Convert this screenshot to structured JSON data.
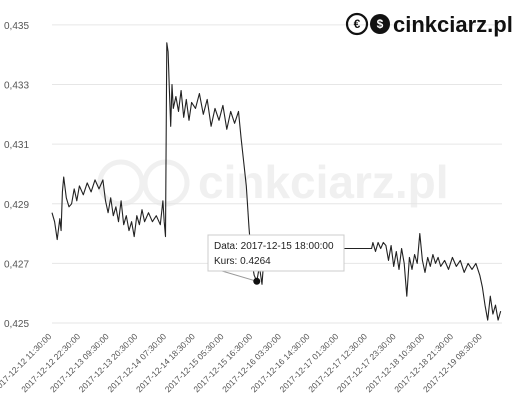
{
  "brand": {
    "name": "cinkciarz",
    "tld": ".pl",
    "icon_glyphs": [
      "€",
      "$"
    ],
    "color": "#111111",
    "watermark_color": "#f0f0f0"
  },
  "chart_data": {
    "type": "line",
    "title": "",
    "xlabel": "",
    "ylabel": "",
    "ylim": [
      0.4248,
      0.4355
    ],
    "yticks": [
      "0,425",
      "0,427",
      "0,429",
      "0,431",
      "0,433",
      "0,435"
    ],
    "ytick_values": [
      0.425,
      0.427,
      0.429,
      0.431,
      0.433,
      0.435
    ],
    "xticks": [
      "2017-12-12 11:30:00",
      "2017-12-12 22:30:00",
      "2017-12-13 09:30:00",
      "2017-12-13 20:30:00",
      "2017-12-14 07:30:00",
      "2017-12-14 18:30:00",
      "2017-12-15 05:30:00",
      "2017-12-15 16:30:00",
      "2017-12-16 03:30:00",
      "2017-12-16 14:30:00",
      "2017-12-17 01:30:00",
      "2017-12-17 12:30:00",
      "2017-12-17 23:30:00",
      "2017-12-18 10:30:00",
      "2017-12-18 21:30:00",
      "2017-12-19 08:30:00"
    ],
    "xtick_display": [
      "2017-12-12 11:30:00",
      "2017-12-12 22:30:00",
      "2017-12-13 09:30:00",
      "2017-12-13 20:30:00",
      "2017-12-14 07:30:00",
      "2017-12-14 18:30:00",
      "2017-12-15 05:30:00",
      "2017-12-15 16:30:00",
      "2017-12-16 03:30:00",
      "2017-12-16 14:30:00",
      "2017-12-17 01:30:00",
      "2017-12-17 12:30:00",
      "2017-12-17 23:30:00",
      "2017-12-18 10:30:00",
      "2017-12-18 21:30:00",
      "2017-12-19 08:30:00"
    ],
    "xlim": [
      "2017-12-12 11:30:00",
      "2017-12-19 16:00:00"
    ],
    "grid": true,
    "legend": "none",
    "series": [
      {
        "color": "#222222",
        "points": [
          [
            "2017-12-12 11:30:00",
            0.4287
          ],
          [
            "2017-12-12 12:30:00",
            0.4284
          ],
          [
            "2017-12-12 13:30:00",
            0.4278
          ],
          [
            "2017-12-12 14:30:00",
            0.4285
          ],
          [
            "2017-12-12 15:00:00",
            0.4281
          ],
          [
            "2017-12-12 15:30:00",
            0.4294
          ],
          [
            "2017-12-12 16:00:00",
            0.4299
          ],
          [
            "2017-12-12 17:00:00",
            0.4292
          ],
          [
            "2017-12-12 18:00:00",
            0.4289
          ],
          [
            "2017-12-12 19:00:00",
            0.429
          ],
          [
            "2017-12-12 20:00:00",
            0.4295
          ],
          [
            "2017-12-12 21:00:00",
            0.4291
          ],
          [
            "2017-12-12 22:00:00",
            0.4296
          ],
          [
            "2017-12-12 23:30:00",
            0.4293
          ],
          [
            "2017-12-13 01:00:00",
            0.4297
          ],
          [
            "2017-12-13 02:30:00",
            0.4294
          ],
          [
            "2017-12-13 04:00:00",
            0.4298
          ],
          [
            "2017-12-13 05:30:00",
            0.4295
          ],
          [
            "2017-12-13 07:00:00",
            0.4298
          ],
          [
            "2017-12-13 08:00:00",
            0.4291
          ],
          [
            "2017-12-13 09:00:00",
            0.4287
          ],
          [
            "2017-12-13 10:00:00",
            0.4292
          ],
          [
            "2017-12-13 11:00:00",
            0.4286
          ],
          [
            "2017-12-13 12:00:00",
            0.4289
          ],
          [
            "2017-12-13 13:00:00",
            0.4284
          ],
          [
            "2017-12-13 14:00:00",
            0.4291
          ],
          [
            "2017-12-13 15:00:00",
            0.4283
          ],
          [
            "2017-12-13 16:00:00",
            0.4286
          ],
          [
            "2017-12-13 17:00:00",
            0.4281
          ],
          [
            "2017-12-13 18:00:00",
            0.4284
          ],
          [
            "2017-12-13 19:00:00",
            0.4279
          ],
          [
            "2017-12-13 20:00:00",
            0.4286
          ],
          [
            "2017-12-13 21:00:00",
            0.4283
          ],
          [
            "2017-12-13 22:00:00",
            0.4288
          ],
          [
            "2017-12-13 23:00:00",
            0.4284
          ],
          [
            "2017-12-14 00:30:00",
            0.4287
          ],
          [
            "2017-12-14 02:00:00",
            0.4284
          ],
          [
            "2017-12-14 03:30:00",
            0.4286
          ],
          [
            "2017-12-14 05:00:00",
            0.4283
          ],
          [
            "2017-12-14 06:00:00",
            0.4291
          ],
          [
            "2017-12-14 06:30:00",
            0.4284
          ],
          [
            "2017-12-14 07:00:00",
            0.4279
          ],
          [
            "2017-12-14 07:30:00",
            0.4344
          ],
          [
            "2017-12-14 08:00:00",
            0.4341
          ],
          [
            "2017-12-14 08:30:00",
            0.4328
          ],
          [
            "2017-12-14 09:00:00",
            0.4316
          ],
          [
            "2017-12-14 09:30:00",
            0.433
          ],
          [
            "2017-12-14 10:00:00",
            0.4322
          ],
          [
            "2017-12-14 11:00:00",
            0.4326
          ],
          [
            "2017-12-14 12:00:00",
            0.4321
          ],
          [
            "2017-12-14 13:00:00",
            0.4328
          ],
          [
            "2017-12-14 14:00:00",
            0.4319
          ],
          [
            "2017-12-14 15:00:00",
            0.4325
          ],
          [
            "2017-12-14 16:00:00",
            0.4318
          ],
          [
            "2017-12-14 17:00:00",
            0.4324
          ],
          [
            "2017-12-14 18:30:00",
            0.4322
          ],
          [
            "2017-12-14 20:00:00",
            0.4327
          ],
          [
            "2017-12-14 21:30:00",
            0.432
          ],
          [
            "2017-12-14 23:00:00",
            0.4325
          ],
          [
            "2017-12-15 00:30:00",
            0.4316
          ],
          [
            "2017-12-15 02:00:00",
            0.4322
          ],
          [
            "2017-12-15 03:30:00",
            0.4318
          ],
          [
            "2017-12-15 05:00:00",
            0.4323
          ],
          [
            "2017-12-15 06:30:00",
            0.4315
          ],
          [
            "2017-12-15 08:00:00",
            0.4321
          ],
          [
            "2017-12-15 09:30:00",
            0.4317
          ],
          [
            "2017-12-15 11:00:00",
            0.4321
          ],
          [
            "2017-12-15 12:00:00",
            0.4312
          ],
          [
            "2017-12-15 13:00:00",
            0.4304
          ],
          [
            "2017-12-15 14:00:00",
            0.4296
          ],
          [
            "2017-12-15 15:00:00",
            0.4282
          ],
          [
            "2017-12-15 16:00:00",
            0.4271
          ],
          [
            "2017-12-15 17:00:00",
            0.4266
          ],
          [
            "2017-12-15 18:00:00",
            0.4264
          ],
          [
            "2017-12-15 19:00:00",
            0.4269
          ],
          [
            "2017-12-15 20:00:00",
            0.4263
          ],
          [
            "2017-12-15 21:00:00",
            0.4275
          ],
          [
            "2017-12-17 14:00:00",
            0.4275
          ],
          [
            "2017-12-17 14:30:00",
            0.4277
          ],
          [
            "2017-12-17 15:30:00",
            0.4274
          ],
          [
            "2017-12-17 16:30:00",
            0.4277
          ],
          [
            "2017-12-17 17:30:00",
            0.4275
          ],
          [
            "2017-12-17 18:30:00",
            0.4277
          ],
          [
            "2017-12-17 19:30:00",
            0.4276
          ],
          [
            "2017-12-17 20:30:00",
            0.4271
          ],
          [
            "2017-12-17 21:30:00",
            0.4276
          ],
          [
            "2017-12-17 22:30:00",
            0.4269
          ],
          [
            "2017-12-17 23:30:00",
            0.4274
          ],
          [
            "2017-12-18 00:30:00",
            0.4268
          ],
          [
            "2017-12-18 01:30:00",
            0.4275
          ],
          [
            "2017-12-18 02:30:00",
            0.427
          ],
          [
            "2017-12-18 03:30:00",
            0.4259
          ],
          [
            "2017-12-18 04:30:00",
            0.4272
          ],
          [
            "2017-12-18 05:30:00",
            0.4268
          ],
          [
            "2017-12-18 06:30:00",
            0.4273
          ],
          [
            "2017-12-18 07:30:00",
            0.427
          ],
          [
            "2017-12-18 08:30:00",
            0.428
          ],
          [
            "2017-12-18 09:30:00",
            0.4271
          ],
          [
            "2017-12-18 10:30:00",
            0.4267
          ],
          [
            "2017-12-18 11:30:00",
            0.4272
          ],
          [
            "2017-12-18 12:30:00",
            0.4269
          ],
          [
            "2017-12-18 13:30:00",
            0.4273
          ],
          [
            "2017-12-18 14:30:00",
            0.427
          ],
          [
            "2017-12-18 15:30:00",
            0.4272
          ],
          [
            "2017-12-18 16:30:00",
            0.4269
          ],
          [
            "2017-12-18 18:00:00",
            0.4271
          ],
          [
            "2017-12-18 19:30:00",
            0.4268
          ],
          [
            "2017-12-18 21:00:00",
            0.4272
          ],
          [
            "2017-12-18 22:30:00",
            0.4269
          ],
          [
            "2017-12-19 00:00:00",
            0.4271
          ],
          [
            "2017-12-19 01:30:00",
            0.4267
          ],
          [
            "2017-12-19 03:00:00",
            0.427
          ],
          [
            "2017-12-19 04:30:00",
            0.4268
          ],
          [
            "2017-12-19 06:00:00",
            0.427
          ],
          [
            "2017-12-19 07:30:00",
            0.4266
          ],
          [
            "2017-12-19 08:30:00",
            0.4262
          ],
          [
            "2017-12-19 09:30:00",
            0.4256
          ],
          [
            "2017-12-19 10:30:00",
            0.4251
          ],
          [
            "2017-12-19 11:30:00",
            0.4259
          ],
          [
            "2017-12-19 12:30:00",
            0.4253
          ],
          [
            "2017-12-19 13:30:00",
            0.4256
          ],
          [
            "2017-12-19 14:30:00",
            0.4251
          ],
          [
            "2017-12-19 15:30:00",
            0.4254
          ]
        ]
      }
    ],
    "tooltip": {
      "date_label": "Data: 2017-12-15 18:00:00",
      "rate_label": "Kurs: 0.4264",
      "x": "2017-12-15 18:00:00",
      "y": 0.4264
    }
  }
}
